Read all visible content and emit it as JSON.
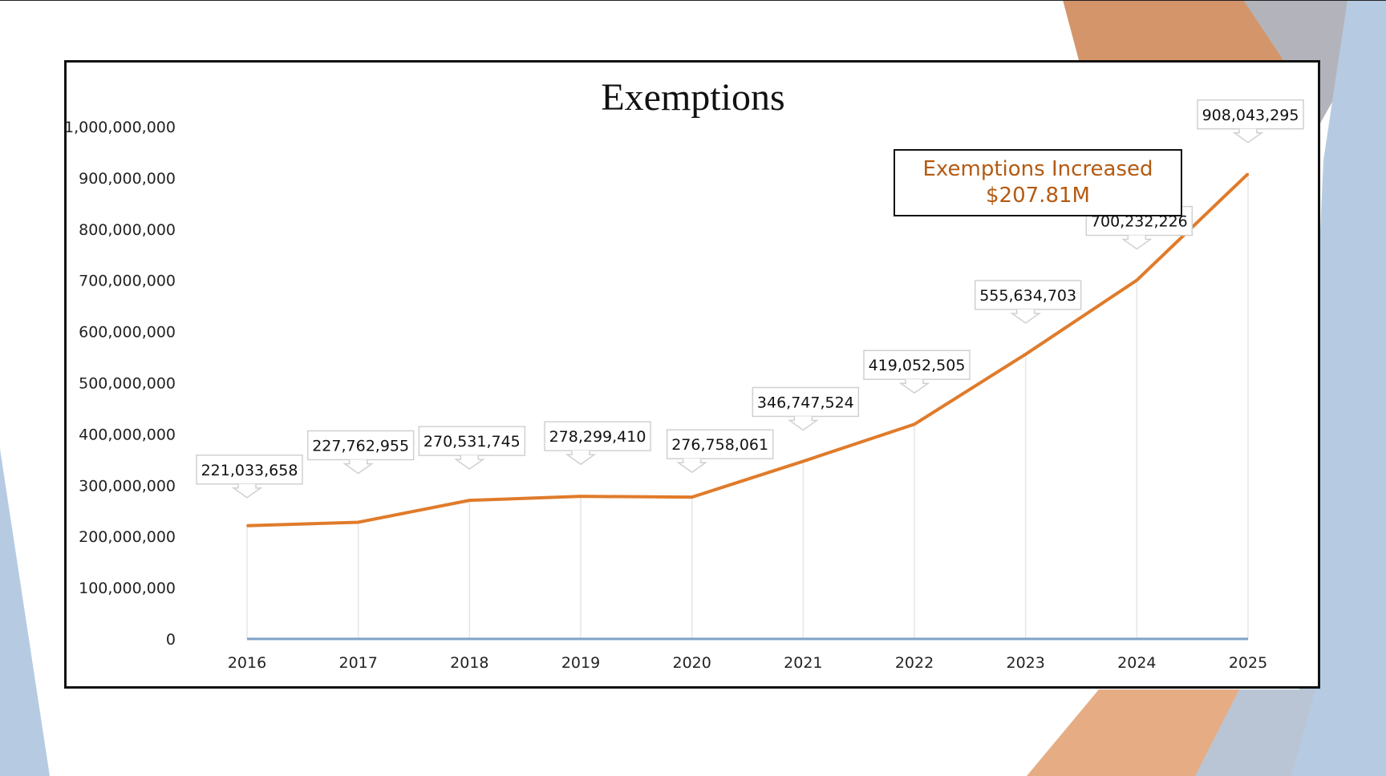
{
  "slide": {
    "colors": {
      "background": "#ffffff",
      "accent_orange": "#d4956a",
      "accent_light_orange": "#e6ad85",
      "accent_gray": "#b3b4bb",
      "accent_blue": "#b6cbe2"
    }
  },
  "callout": {
    "line1": "Exemptions Increased",
    "line2": "$207.81M",
    "color": "#b45a12"
  },
  "chart_data": {
    "type": "line",
    "title": "Exemptions",
    "xlabel": "",
    "ylabel": "",
    "categories": [
      "2016",
      "2017",
      "2018",
      "2019",
      "2020",
      "2021",
      "2022",
      "2023",
      "2024",
      "2025"
    ],
    "series": [
      {
        "name": "Exemptions",
        "color": "#e07b2a",
        "values": [
          221033658,
          227762955,
          270531745,
          278299410,
          276758061,
          346747524,
          419052505,
          555634703,
          700232226,
          908043295
        ],
        "labels": [
          "221,033,658",
          "227,762,955",
          "270,531,745",
          "278,299,410",
          "276,758,061",
          "346,747,524",
          "419,052,505",
          "555,634,703",
          "700,232,226",
          "908,043,295"
        ]
      }
    ],
    "ylim": [
      0,
      1000000000
    ],
    "yticks": [
      0,
      100000000,
      200000000,
      300000000,
      400000000,
      500000000,
      600000000,
      700000000,
      800000000,
      900000000,
      1000000000
    ],
    "ytick_labels": [
      "0",
      "100,000,000",
      "200,000,000",
      "300,000,000",
      "400,000,000",
      "500,000,000",
      "600,000,000",
      "700,000,000",
      "800,000,000",
      "900,000,000",
      "1,000,000,000"
    ],
    "grid": "vertical",
    "axis_color": "#7fa2c8",
    "grid_color": "#e6e6e6",
    "legend": "none"
  }
}
